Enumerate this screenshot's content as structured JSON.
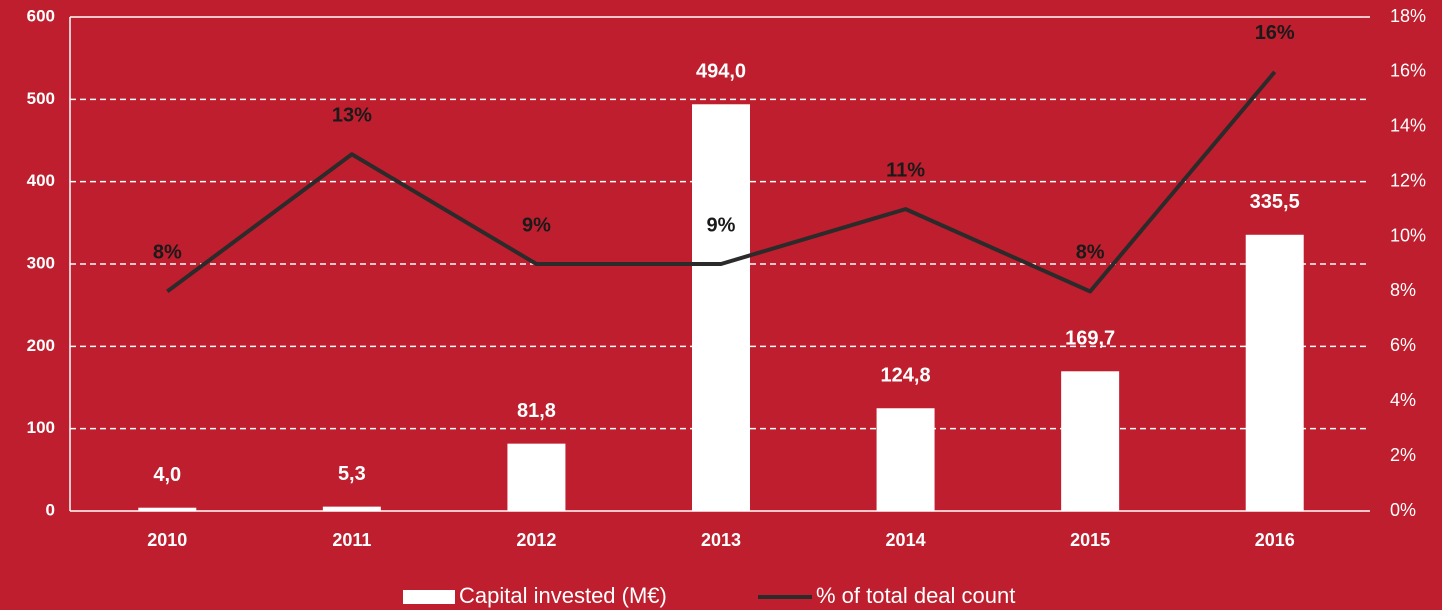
{
  "chart_data": {
    "type": "bar-line",
    "categories": [
      "2010",
      "2011",
      "2012",
      "2013",
      "2014",
      "2015",
      "2016"
    ],
    "series": [
      {
        "name": "Capital invested (M€)",
        "type": "bar",
        "color": "#ffffff",
        "values": [
          4.0,
          5.3,
          81.8,
          494.0,
          124.8,
          169.7,
          335.5
        ],
        "value_labels": [
          "4,0",
          "5,3",
          "81,8",
          "494,0",
          "124,8",
          "169,7",
          "335,5"
        ]
      },
      {
        "name": "% of total deal count",
        "type": "line",
        "axis": "y2",
        "color": "#2b2b2b",
        "values": [
          8,
          13,
          9,
          9,
          11,
          8,
          16
        ],
        "value_labels": [
          "8%",
          "13%",
          "9%",
          "9%",
          "11%",
          "8%",
          "16%"
        ]
      }
    ],
    "ylim": [
      0,
      600
    ],
    "yticks": [
      0,
      100,
      200,
      300,
      400,
      500,
      600
    ],
    "y2lim": [
      0,
      18
    ],
    "y2ticks": [
      {
        "value": 0,
        "label": "0%"
      },
      {
        "value": 2,
        "label": "2%"
      },
      {
        "value": 4,
        "label": "4%"
      },
      {
        "value": 6,
        "label": "6%"
      },
      {
        "value": 8,
        "label": "8%"
      },
      {
        "value": 10,
        "label": "10%"
      },
      {
        "value": 12,
        "label": "12%"
      },
      {
        "value": 14,
        "label": "14%"
      },
      {
        "value": 16,
        "label": "16%"
      },
      {
        "value": 18,
        "label": "18%"
      }
    ],
    "grid": true,
    "legend": "bottom",
    "background": "#be1e2d"
  }
}
